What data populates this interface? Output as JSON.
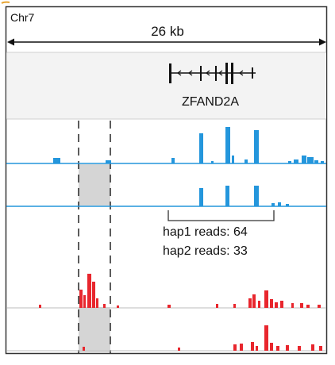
{
  "locus": {
    "chromosome": "Chr7",
    "scale_label": "26 kb",
    "gene_name": "ZFAND2A"
  },
  "allele_counts": {
    "hap1_label": "hap1 reads: 64",
    "hap2_label": "hap2 reads: 33"
  },
  "colors": {
    "coverage_blue": "#2496dc",
    "coverage_red": "#e8262d",
    "highlight_gray": "#d3d3d3",
    "frame_border": "#333333",
    "gene_track_bg": "#f2f2f2"
  }
}
